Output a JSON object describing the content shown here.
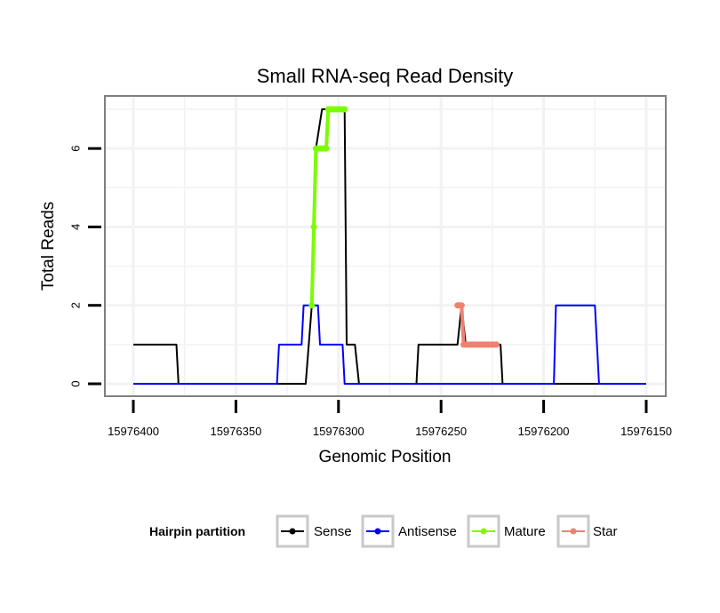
{
  "chart_data": {
    "type": "line",
    "title": "Small RNA-seq Read Density",
    "xlabel": "Genomic Position",
    "ylabel": "Total Reads",
    "xlim": [
      15976400,
      15976150
    ],
    "x_reversed": true,
    "ylim": [
      0,
      7
    ],
    "x_ticks": [
      15976400,
      15976350,
      15976300,
      15976250,
      15976200,
      15976150
    ],
    "x_tick_labels": [
      "15976400",
      "15976350",
      "15976300",
      "15976250",
      "15976200",
      "15976150"
    ],
    "y_ticks": [
      0,
      2,
      4,
      6
    ],
    "y_tick_labels": [
      "0",
      "2",
      "4",
      "6"
    ],
    "grid": true,
    "series": [
      {
        "name": "Sense",
        "color": "#000000",
        "points": [
          [
            15976400,
            1
          ],
          [
            15976379,
            1
          ],
          [
            15976378,
            0
          ],
          [
            15976316,
            0
          ],
          [
            15976313,
            2
          ],
          [
            15976312,
            4
          ],
          [
            15976311,
            6
          ],
          [
            15976308,
            7
          ],
          [
            15976297,
            7
          ],
          [
            15976296,
            1
          ],
          [
            15976292,
            1
          ],
          [
            15976290,
            0
          ],
          [
            15976262,
            0
          ],
          [
            15976261,
            1
          ],
          [
            15976242,
            1
          ],
          [
            15976240,
            2
          ],
          [
            15976238,
            1
          ],
          [
            15976221,
            1
          ],
          [
            15976220,
            0
          ],
          [
            15976150,
            0
          ]
        ]
      },
      {
        "name": "Antisense",
        "color": "#0000ff",
        "points": [
          [
            15976400,
            0
          ],
          [
            15976330,
            0
          ],
          [
            15976329,
            1
          ],
          [
            15976318,
            1
          ],
          [
            15976317,
            2
          ],
          [
            15976310,
            2
          ],
          [
            15976309,
            1
          ],
          [
            15976298,
            1
          ],
          [
            15976297,
            0
          ],
          [
            15976195,
            0
          ],
          [
            15976194,
            2
          ],
          [
            15976175,
            2
          ],
          [
            15976173,
            0
          ],
          [
            15976150,
            0
          ]
        ]
      },
      {
        "name": "Mature",
        "color": "#7cfc00",
        "points": [
          [
            15976313,
            2
          ],
          [
            15976312,
            4
          ],
          [
            15976311,
            6
          ],
          [
            15976310,
            6
          ],
          [
            15976309,
            6
          ],
          [
            15976308,
            6
          ],
          [
            15976307,
            6
          ],
          [
            15976306,
            6
          ],
          [
            15976305,
            7
          ],
          [
            15976304,
            7
          ],
          [
            15976303,
            7
          ],
          [
            15976302,
            7
          ],
          [
            15976301,
            7
          ],
          [
            15976300,
            7
          ],
          [
            15976299,
            7
          ],
          [
            15976298,
            7
          ],
          [
            15976297,
            7
          ]
        ]
      },
      {
        "name": "Star",
        "color": "#f08070",
        "points": [
          [
            15976242,
            2
          ],
          [
            15976241,
            2
          ],
          [
            15976240,
            2
          ],
          [
            15976239,
            1
          ],
          [
            15976238,
            1
          ],
          [
            15976237,
            1
          ],
          [
            15976236,
            1
          ],
          [
            15976235,
            1
          ],
          [
            15976234,
            1
          ],
          [
            15976233,
            1
          ],
          [
            15976232,
            1
          ],
          [
            15976231,
            1
          ],
          [
            15976230,
            1
          ],
          [
            15976229,
            1
          ],
          [
            15976228,
            1
          ],
          [
            15976227,
            1
          ],
          [
            15976226,
            1
          ],
          [
            15976225,
            1
          ],
          [
            15976224,
            1
          ],
          [
            15976223,
            1
          ]
        ]
      }
    ],
    "markers_on": [
      "Mature",
      "Star"
    ],
    "legend": {
      "title": "Hairpin partition",
      "position": "bottom",
      "entries": [
        "Sense",
        "Antisense",
        "Mature",
        "Star"
      ]
    }
  }
}
